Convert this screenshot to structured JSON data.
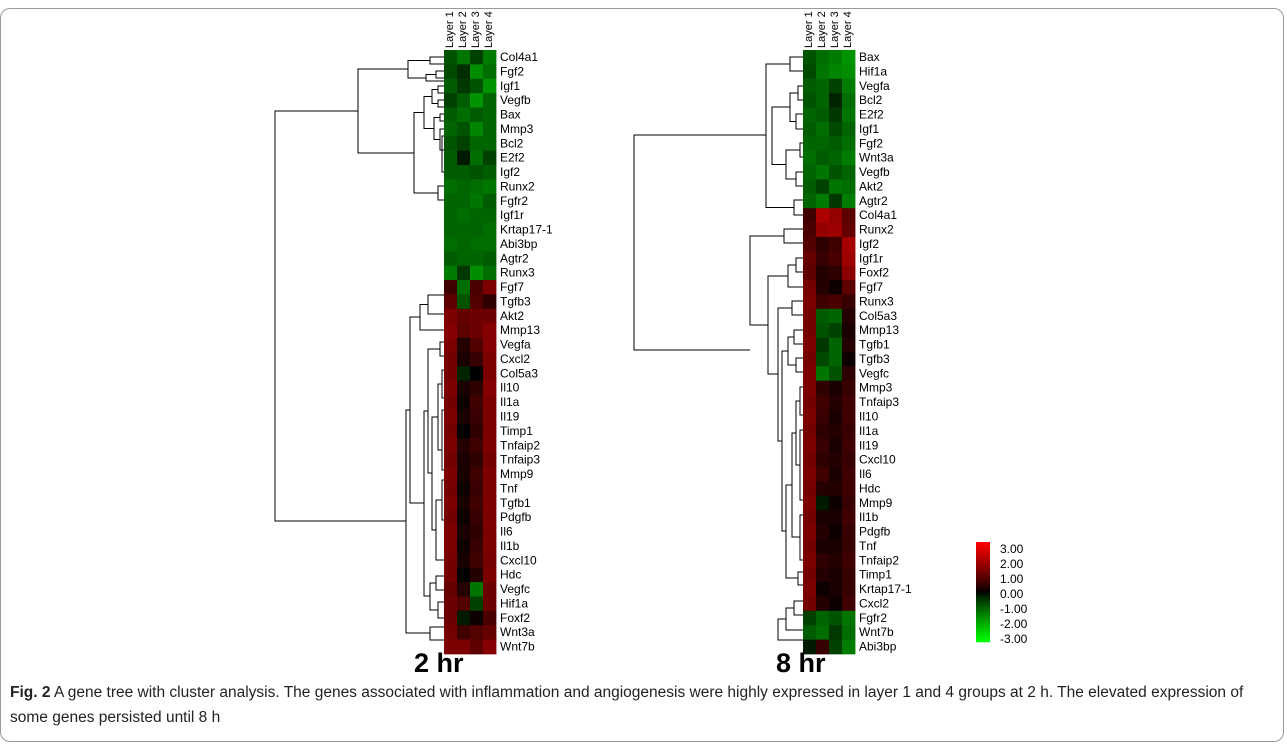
{
  "caption": {
    "label": "Fig. 2",
    "text": "A gene tree with cluster analysis. The genes associated with inflammation and angiogenesis were highly expressed in layer 1 and 4 groups at 2 h. The elevated expression of some genes persisted until 8 h"
  },
  "layers": [
    "Layer 1",
    "Layer 2",
    "Layer 3",
    "Layer 4"
  ],
  "panels": [
    {
      "title": "2 hr",
      "genes": [
        "Col4a1",
        "Fgf2",
        "Igf1",
        "Vegfb",
        "Bax",
        "Mmp3",
        "Bcl2",
        "E2f2",
        "Igf2",
        "Runx2",
        "Fgfr2",
        "Igf1r",
        "Krtap17-1",
        "Abi3bp",
        "Agtr2",
        "Runx3",
        "Fgf7",
        "Tgfb3",
        "Akt2",
        "Mmp13",
        "Vegfa",
        "Cxcl2",
        "Col5a3",
        "Il10",
        "Il1a",
        "Il19",
        "Timp1",
        "Tnfaip2",
        "Tnfaip3",
        "Mmp9",
        "Tnf",
        "Tgfb1",
        "Pdgfb",
        "Il6",
        "Il1b",
        "Cxcl10",
        "Hdc",
        "Vegfc",
        "Hif1a",
        "Foxf2",
        "Wnt3a",
        "Wnt7b"
      ],
      "values": [
        [
          -0.8,
          -1.2,
          -0.6,
          -1.3
        ],
        [
          -0.7,
          -0.4,
          -1.5,
          -1.1
        ],
        [
          -0.9,
          -0.5,
          -0.8,
          -1.6
        ],
        [
          -0.6,
          -0.9,
          -1.6,
          -1.0
        ],
        [
          -0.9,
          -1.1,
          -0.9,
          -1.0
        ],
        [
          -1.0,
          -0.8,
          -1.4,
          -1.0
        ],
        [
          -0.8,
          -0.6,
          -1.0,
          -1.0
        ],
        [
          -0.9,
          -0.2,
          -1.1,
          -0.6
        ],
        [
          -0.9,
          -0.9,
          -0.8,
          -0.9
        ],
        [
          -1.1,
          -1.0,
          -1.1,
          -1.2
        ],
        [
          -1.0,
          -1.0,
          -1.2,
          -0.9
        ],
        [
          -1.0,
          -1.1,
          -1.0,
          -1.0
        ],
        [
          -1.0,
          -1.0,
          -1.0,
          -1.1
        ],
        [
          -1.1,
          -1.0,
          -1.1,
          -1.1
        ],
        [
          -0.9,
          -1.0,
          -1.0,
          -0.9
        ],
        [
          -1.3,
          -0.5,
          -1.5,
          -1.1
        ],
        [
          0.6,
          -1.1,
          0.7,
          1.3
        ],
        [
          0.9,
          -0.8,
          0.8,
          0.4
        ],
        [
          1.3,
          1.0,
          1.1,
          1.1
        ],
        [
          1.4,
          0.9,
          1.1,
          1.4
        ],
        [
          1.3,
          0.3,
          0.8,
          1.4
        ],
        [
          1.2,
          0.2,
          0.5,
          1.3
        ],
        [
          1.2,
          -0.3,
          0.0,
          1.3
        ],
        [
          1.3,
          0.2,
          0.4,
          1.4
        ],
        [
          1.2,
          0.1,
          0.6,
          1.3
        ],
        [
          1.3,
          0.2,
          0.5,
          1.3
        ],
        [
          1.2,
          0.0,
          0.4,
          1.3
        ],
        [
          1.3,
          0.3,
          0.6,
          1.3
        ],
        [
          1.2,
          0.2,
          0.4,
          1.2
        ],
        [
          1.3,
          0.2,
          0.6,
          1.3
        ],
        [
          1.2,
          0.1,
          0.5,
          1.3
        ],
        [
          1.3,
          0.2,
          0.6,
          1.3
        ],
        [
          1.2,
          0.1,
          0.5,
          1.3
        ],
        [
          1.3,
          0.2,
          0.4,
          1.3
        ],
        [
          1.3,
          0.1,
          0.5,
          1.3
        ],
        [
          1.2,
          0.2,
          0.6,
          1.2
        ],
        [
          1.2,
          0.0,
          0.3,
          1.3
        ],
        [
          1.0,
          0.3,
          -1.2,
          1.1
        ],
        [
          1.1,
          0.8,
          -0.6,
          1.1
        ],
        [
          1.1,
          -0.2,
          0.1,
          0.7
        ],
        [
          1.2,
          0.6,
          0.8,
          1.0
        ],
        [
          1.3,
          1.3,
          0.9,
          1.4
        ]
      ]
    },
    {
      "title": "8 hr",
      "genes": [
        "Bax",
        "Hif1a",
        "Vegfa",
        "Bcl2",
        "E2f2",
        "Igf1",
        "Fgf2",
        "Wnt3a",
        "Vegfb",
        "Akt2",
        "Agtr2",
        "Col4a1",
        "Runx2",
        "Igf2",
        "Igf1r",
        "Foxf2",
        "Fgf7",
        "Runx3",
        "Col5a3",
        "Mmp13",
        "Tgfb1",
        "Tgfb3",
        "Vegfc",
        "Mmp3",
        "Tnfaip3",
        "Il10",
        "Il1a",
        "Il19",
        "Cxcl10",
        "Il6",
        "Hdc",
        "Mmp9",
        "Il1b",
        "Pdgfb",
        "Tnf",
        "Tnfaip2",
        "Timp1",
        "Krtap17-1",
        "Cxcl2",
        "Fgfr2",
        "Wnt7b",
        "Abi3bp"
      ],
      "values": [
        [
          -0.8,
          -1.1,
          -1.3,
          -1.6
        ],
        [
          -0.7,
          -1.2,
          -1.4,
          -1.5
        ],
        [
          -0.9,
          -1.0,
          -0.6,
          -1.3
        ],
        [
          -0.8,
          -1.0,
          -0.3,
          -1.1
        ],
        [
          -1.0,
          -0.9,
          -0.5,
          -1.2
        ],
        [
          -0.9,
          -1.1,
          -0.7,
          -1.0
        ],
        [
          -1.0,
          -1.0,
          -0.9,
          -1.1
        ],
        [
          -1.1,
          -0.9,
          -1.0,
          -1.3
        ],
        [
          -1.0,
          -1.2,
          -0.8,
          -1.0
        ],
        [
          -0.9,
          -0.6,
          -1.2,
          -1.1
        ],
        [
          -1.0,
          -1.3,
          -0.5,
          -1.3
        ],
        [
          0.6,
          1.9,
          1.6,
          0.9
        ],
        [
          0.7,
          1.6,
          1.7,
          1.0
        ],
        [
          0.8,
          0.4,
          0.6,
          1.8
        ],
        [
          1.0,
          0.5,
          0.7,
          1.7
        ],
        [
          0.9,
          0.3,
          0.4,
          1.5
        ],
        [
          1.2,
          0.3,
          0.1,
          0.9
        ],
        [
          1.3,
          0.6,
          0.7,
          0.5
        ],
        [
          1.2,
          -0.9,
          -1.0,
          0.3
        ],
        [
          1.2,
          -0.8,
          -0.6,
          0.2
        ],
        [
          1.3,
          -0.5,
          -1.0,
          0.3
        ],
        [
          1.2,
          -0.7,
          -1.0,
          0.1
        ],
        [
          1.3,
          -1.2,
          -0.8,
          0.4
        ],
        [
          1.3,
          0.4,
          0.2,
          0.5
        ],
        [
          1.2,
          0.6,
          0.3,
          0.6
        ],
        [
          1.3,
          0.5,
          0.2,
          0.6
        ],
        [
          1.2,
          0.4,
          0.3,
          0.5
        ],
        [
          1.3,
          0.5,
          0.2,
          0.6
        ],
        [
          1.2,
          0.4,
          0.3,
          0.5
        ],
        [
          1.3,
          0.6,
          0.2,
          0.6
        ],
        [
          1.2,
          0.3,
          0.3,
          0.6
        ],
        [
          1.3,
          -0.2,
          0.1,
          0.5
        ],
        [
          1.2,
          0.2,
          0.2,
          0.6
        ],
        [
          1.3,
          0.3,
          0.1,
          0.5
        ],
        [
          1.2,
          0.2,
          0.2,
          0.5
        ],
        [
          1.3,
          0.4,
          0.3,
          0.6
        ],
        [
          1.2,
          0.3,
          0.2,
          0.5
        ],
        [
          1.3,
          0.1,
          0.2,
          0.5
        ],
        [
          1.2,
          0.3,
          0.1,
          0.6
        ],
        [
          -0.6,
          -1.0,
          -0.8,
          -1.2
        ],
        [
          -0.9,
          -1.1,
          -0.5,
          -1.1
        ],
        [
          -0.2,
          0.5,
          -0.6,
          -1.3
        ]
      ]
    }
  ],
  "legend": {
    "labels": [
      "3.00",
      "2.00",
      "1.00",
      "0.00",
      "-1.00",
      "-2.00",
      "-3.00"
    ],
    "colors": [
      "#ff0000",
      "#b60d0d",
      "#4a0a0a",
      "#000000",
      "#0b4a0b",
      "#12b012",
      "#00ff00"
    ]
  },
  "colors": {
    "high": "#ff0000",
    "zero": "#000000",
    "low": "#00ff00",
    "tree": "#000000"
  }
}
